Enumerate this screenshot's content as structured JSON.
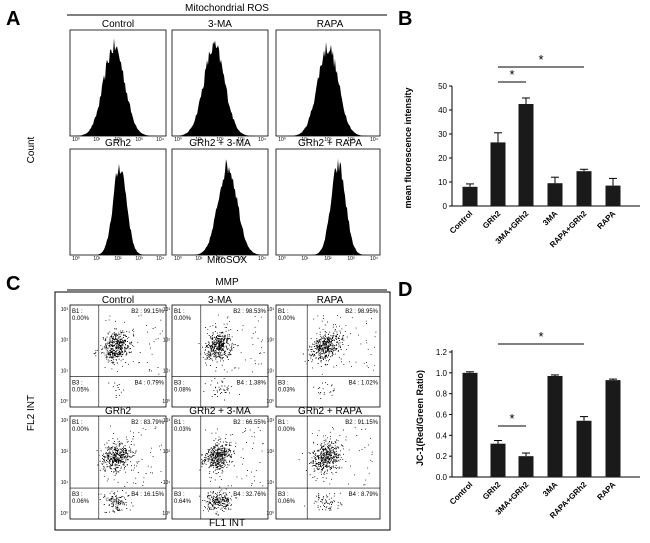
{
  "panel_labels": [
    "A",
    "B",
    "C",
    "D"
  ],
  "panel_a": {
    "title": "Mitochondrial ROS",
    "row1": [
      "Control",
      "3-MA",
      "RAPA"
    ],
    "row2": [
      "GRh2",
      "GRh2 + 3-MA",
      "GRh2 + RAPA"
    ],
    "ylabel": "Count",
    "xlabel": "MitoSOX"
  },
  "panel_c": {
    "title": "MMP",
    "row1": [
      "Control",
      "3-MA",
      "RAPA"
    ],
    "row2": [
      "GRh2",
      "GRh2 + 3-MA",
      "GRh2 + RAPA"
    ],
    "ylabel": "FL2 INT",
    "xlabel": "FL1 INT",
    "quadrants": [
      {
        "b1": "B1 : 0.00%",
        "b2": "B2 : 99.15%",
        "b3": "B3 : 0.05%",
        "b4": "B4 : 0.79%"
      },
      {
        "b1": "B1 : 0.00%",
        "b2": "B2 : 98.53%",
        "b3": "B3 : 0.08%",
        "b4": "B4 : 1.38%"
      },
      {
        "b1": "B1 : 0.00%",
        "b2": "B2 : 98.95%",
        "b3": "B3 : 0.03%",
        "b4": "B4 : 1.02%"
      },
      {
        "b1": "B1 : 0.00%",
        "b2": "B2 : 83.79%",
        "b3": "B3 : 0.06%",
        "b4": "B4 : 16.15%"
      },
      {
        "b1": "B1 : 0.03%",
        "b2": "B2 : 66.55%",
        "b3": "B3 : 0.64%",
        "b4": "B4 : 32.76%"
      },
      {
        "b1": "B1 : 0.00%",
        "b2": "B2 : 91.15%",
        "b3": "B3 : 0.06%",
        "b4": "B4 : 8.79%"
      }
    ]
  },
  "chart_data": [
    {
      "type": "bar",
      "panel": "B",
      "title": "",
      "xlabel": "",
      "ylabel": "mean fluorescence intensity",
      "categories": [
        "Control",
        "GRh2",
        "3MA+GRh2",
        "3MA",
        "RAPA+GRh2",
        "RAPA"
      ],
      "values": [
        8,
        26.5,
        42.5,
        9.5,
        14.5,
        8.5
      ],
      "errors": [
        1.2,
        4,
        2.5,
        2.5,
        0.8,
        3
      ],
      "ylim": [
        0,
        50
      ],
      "yticks": [
        "0",
        "10",
        "20",
        "30",
        "40",
        "50"
      ],
      "significance": [
        {
          "from": "GRh2",
          "to": "3MA+GRh2",
          "label": "*"
        },
        {
          "from": "GRh2",
          "to": "RAPA+GRh2",
          "label": "*"
        }
      ],
      "bar_color": "#1a1a1a"
    },
    {
      "type": "bar",
      "panel": "D",
      "title": "",
      "xlabel": "",
      "ylabel": "JC-1(Red/Green Ratio)",
      "categories": [
        "Control",
        "GRh2",
        "3MA+GRh2",
        "3MA",
        "RAPA+GRh2",
        "RAPA"
      ],
      "values": [
        1.0,
        0.32,
        0.2,
        0.97,
        0.54,
        0.93
      ],
      "errors": [
        0.01,
        0.03,
        0.03,
        0.01,
        0.04,
        0.01
      ],
      "ylim": [
        0,
        1.2
      ],
      "yticks": [
        "0.0",
        "0.2",
        "0.4",
        "0.6",
        "0.8",
        "1.0",
        "1.2"
      ],
      "significance": [
        {
          "from": "GRh2",
          "to": "3MA+GRh2",
          "label": "*"
        },
        {
          "from": "GRh2",
          "to": "RAPA+GRh2",
          "label": "*"
        }
      ],
      "bar_color": "#1a1a1a"
    }
  ]
}
